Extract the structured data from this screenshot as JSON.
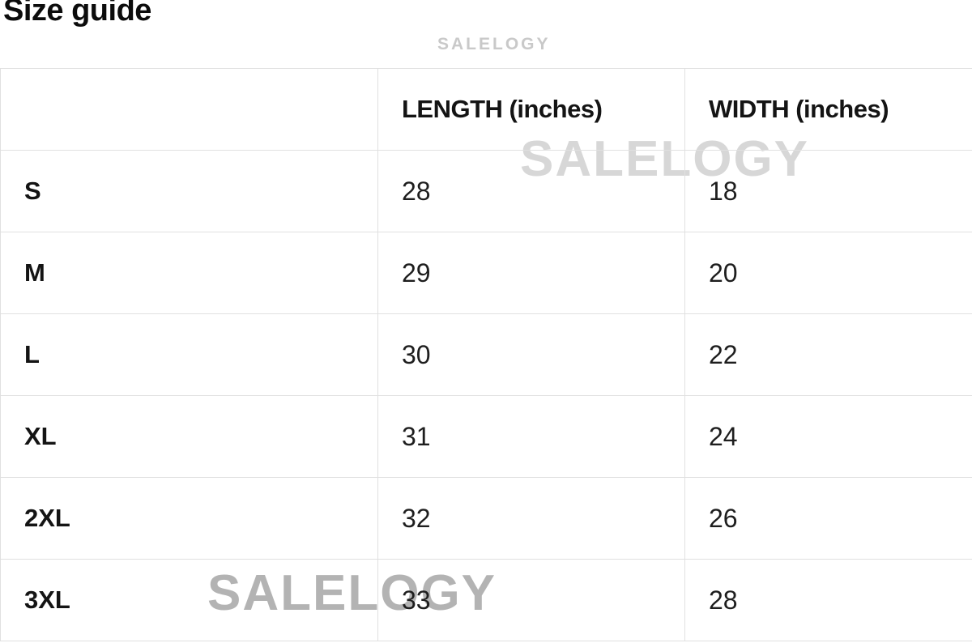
{
  "page": {
    "title": "Size guide"
  },
  "watermarks": {
    "top": "SALELOGY",
    "middle": "SALELOGY",
    "bottom": "SALELOGY"
  },
  "size_table": {
    "headers": {
      "size": "",
      "length": "LENGTH (inches)",
      "width": "WIDTH (inches)"
    },
    "rows": [
      {
        "size": "S",
        "length": "28",
        "width": "18"
      },
      {
        "size": "M",
        "length": "29",
        "width": "20"
      },
      {
        "size": "L",
        "length": "30",
        "width": "22"
      },
      {
        "size": "XL",
        "length": "31",
        "width": "24"
      },
      {
        "size": "2XL",
        "length": "32",
        "width": "26"
      },
      {
        "size": "3XL",
        "length": "33",
        "width": "28"
      }
    ]
  },
  "colors": {
    "background": "#ffffff",
    "table_border": "#e0e0e0",
    "title_text": "#0c0c0c",
    "cell_text": "#1e1e1e",
    "watermark_top": "#c9c9c9",
    "watermark_middle": "#d7d7d7",
    "watermark_bottom": "#b3b3b3"
  }
}
